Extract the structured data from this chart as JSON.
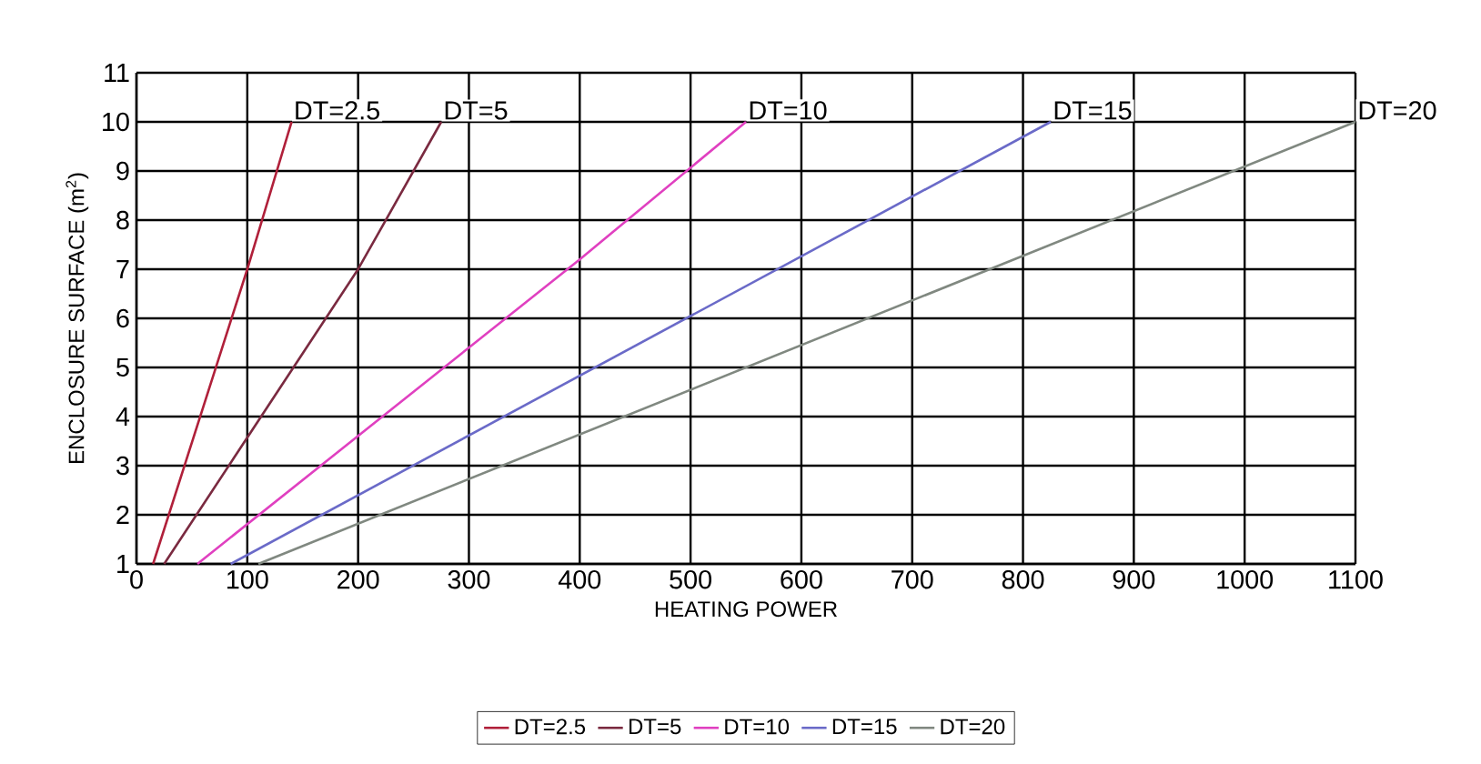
{
  "chart_data": {
    "type": "line",
    "xlabel": "HEATING POWER",
    "ylabel": "ENCLOSURE SURFACE (m$^{2}$)",
    "xlim": [
      0,
      1100
    ],
    "ylim": [
      1,
      11
    ],
    "xticks": [
      0,
      100,
      200,
      300,
      400,
      500,
      600,
      700,
      800,
      900,
      1000,
      1100
    ],
    "yticks": [
      1,
      2,
      3,
      4,
      5,
      6,
      7,
      8,
      9,
      10,
      11
    ],
    "grid": true,
    "legend": "bottom",
    "marker": "none",
    "line_style": "solid",
    "series": [
      {
        "name": "DT=2.5",
        "color": "#b0203a",
        "x": [
          15,
          100,
          140
        ],
        "values": [
          1,
          7,
          10
        ]
      },
      {
        "name": "DT=5",
        "color": "#7a2a40",
        "x": [
          25,
          200,
          275
        ],
        "values": [
          1,
          7,
          10
        ]
      },
      {
        "name": "DT=10",
        "color": "#e040c0",
        "x": [
          55,
          400,
          550
        ],
        "values": [
          1,
          7.2,
          10
        ]
      },
      {
        "name": "DT=15",
        "color": "#6a6ac8",
        "x": [
          85,
          825
        ],
        "values": [
          1,
          10
        ]
      },
      {
        "name": "DT=20",
        "color": "#808880",
        "x": [
          110,
          1100
        ],
        "values": [
          1,
          10
        ]
      }
    ],
    "annotations": [
      {
        "text": "DT=2.5",
        "x": 140,
        "y": 10
      },
      {
        "text": "DT=5",
        "x": 275,
        "y": 10
      },
      {
        "text": "DT=10",
        "x": 550,
        "y": 10
      },
      {
        "text": "DT=15",
        "x": 825,
        "y": 10
      },
      {
        "text": "DT=20",
        "x": 1100,
        "y": 10
      }
    ]
  }
}
